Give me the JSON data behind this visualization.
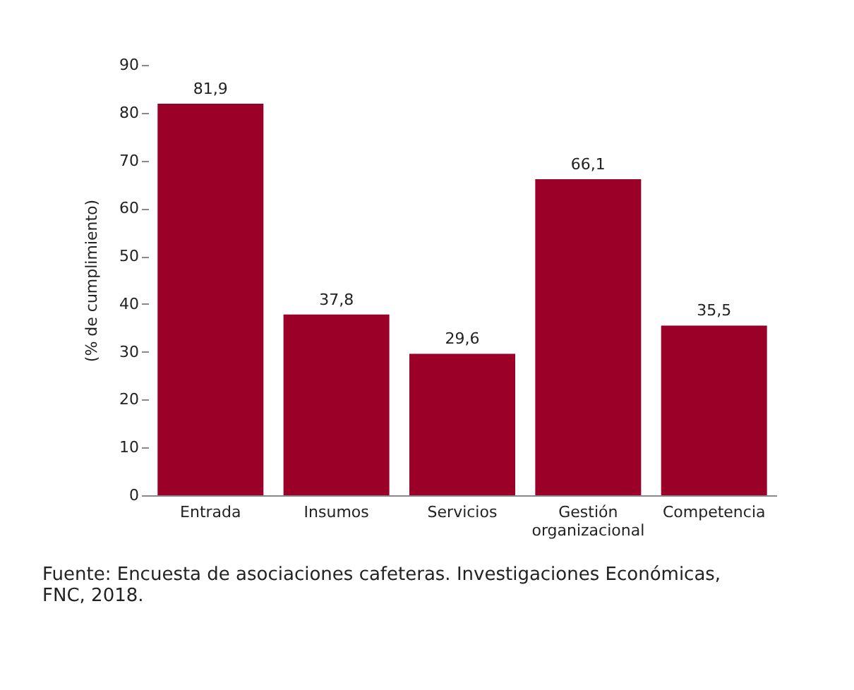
{
  "chart_data": {
    "type": "bar",
    "ylabel": "(% de cumplimiento)",
    "categories": [
      "Entrada",
      "Insumos",
      "Servicios",
      "Gestión organizacional",
      "Competencia"
    ],
    "values": [
      81.9,
      37.8,
      29.6,
      66.1,
      35.5
    ],
    "color": "#9b0029",
    "value_labels": [
      "81,9",
      "37,8",
      "29,6",
      "66,1",
      "35,5"
    ],
    "ylim": [
      0,
      90
    ],
    "yticks": [
      0,
      10,
      20,
      30,
      40,
      50,
      60,
      70,
      80,
      90
    ],
    "grid": false,
    "annotations": [
      "Fuente: Encuesta de asociaciones cafeteras. Investigaciones Económicas, FNC, 2018."
    ]
  }
}
